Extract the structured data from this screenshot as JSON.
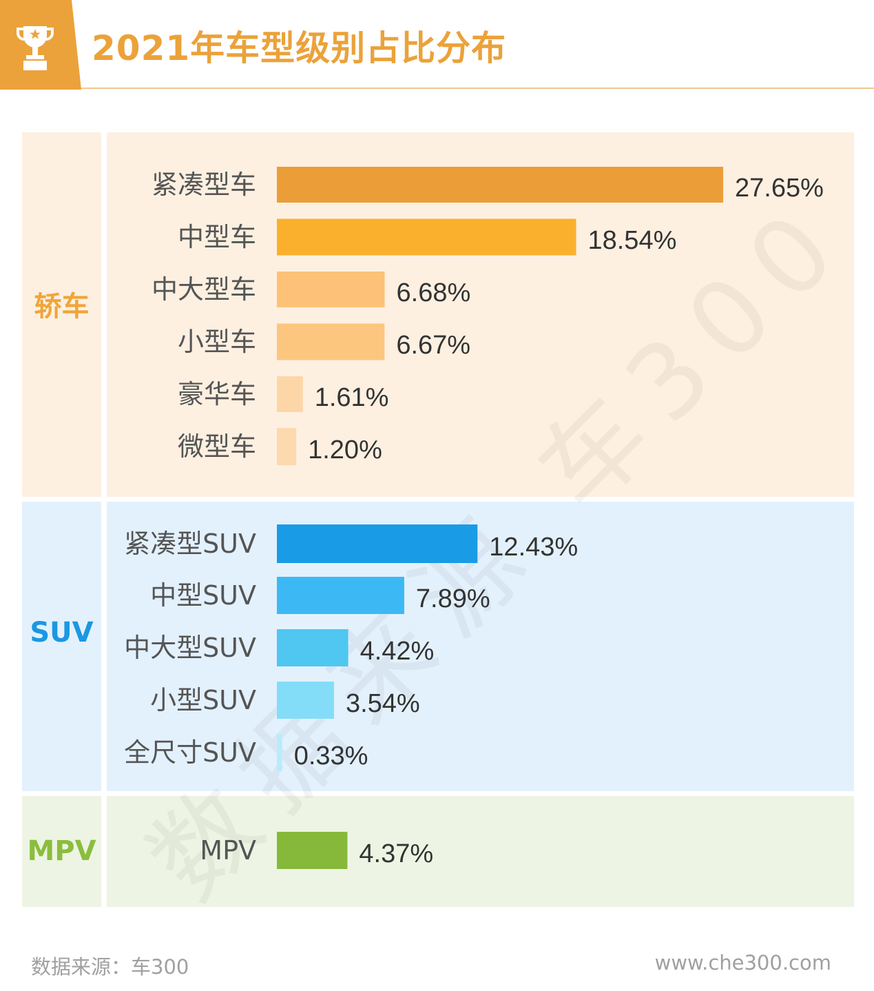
{
  "header": {
    "title": "2021年车型级别占比分布"
  },
  "watermark": "数据来源 车300",
  "footer": {
    "source": "数据来源：车300",
    "site": "www.che300.com"
  },
  "colors": {
    "accent": "#eba23a",
    "sedan_bg": "#fdf0e1",
    "suv_bg": "#e3f1fd",
    "mpv_bg": "#edf4e3",
    "sedan_label": "#f0a53a",
    "suv_label": "#1b97e3",
    "mpv_label": "#8bbd3d",
    "value_text": "#333333",
    "category_text": "#555555"
  },
  "groups": [
    {
      "key": "sedan",
      "label": "轿车"
    },
    {
      "key": "suv",
      "label": "SUV"
    },
    {
      "key": "mpv",
      "label": "MPV"
    }
  ],
  "chart_data": {
    "type": "bar",
    "orientation": "horizontal",
    "title": "2021年车型级别占比分布",
    "xlabel": "",
    "ylabel": "",
    "xlim": [
      0,
      27.65
    ],
    "grid": false,
    "groups": [
      "轿车",
      "SUV",
      "MPV"
    ],
    "categories": [
      "紧凑型车",
      "中型车",
      "中大型车",
      "小型车",
      "豪华车",
      "微型车",
      "紧凑型SUV",
      "中型SUV",
      "中大型SUV",
      "小型SUV",
      "全尺寸SUV",
      "MPV"
    ],
    "category_groups": [
      "轿车",
      "轿车",
      "轿车",
      "轿车",
      "轿车",
      "轿车",
      "SUV",
      "SUV",
      "SUV",
      "SUV",
      "SUV",
      "MPV"
    ],
    "values": [
      27.65,
      18.54,
      6.68,
      6.67,
      1.61,
      1.2,
      12.43,
      7.89,
      4.42,
      3.54,
      0.33,
      4.37
    ],
    "value_labels": [
      "27.65%",
      "18.54%",
      "6.68%",
      "6.67%",
      "1.61%",
      "1.20%",
      "12.43%",
      "7.89%",
      "4.42%",
      "3.54%",
      "0.33%",
      "4.37%"
    ],
    "bar_colors": [
      "#eb9d37",
      "#fbb02d",
      "#fdc277",
      "#fdc67f",
      "#fdd6a8",
      "#fdd9b0",
      "#1a9be6",
      "#3cb9f4",
      "#4fc7f0",
      "#84ddf8",
      "#b9ecfb",
      "#86b93a"
    ]
  }
}
